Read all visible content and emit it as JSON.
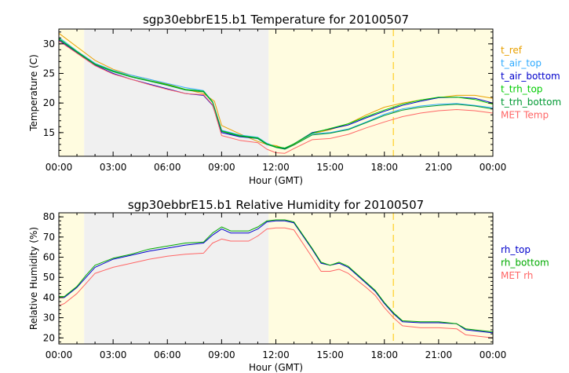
{
  "chart_data": [
    {
      "type": "line",
      "title": "sgp30ebbrE15.b1 Temperature for 20100507",
      "xlabel": "Hour (GMT)",
      "ylabel": "Temperature (C)",
      "xlim": [
        0,
        24
      ],
      "ylim": [
        11,
        32.5
      ],
      "xticks": [
        0,
        3,
        6,
        9,
        12,
        15,
        18,
        21,
        24
      ],
      "xtick_labels": [
        "00:00",
        "03:00",
        "06:00",
        "09:00",
        "12:00",
        "15:00",
        "18:00",
        "21:00",
        "00:00"
      ],
      "yticks": [
        15,
        20,
        25,
        30
      ],
      "ytick_labels": [
        "15",
        "20",
        "25",
        "30"
      ],
      "shading": [
        {
          "from": 0,
          "to": 1.4,
          "color": "#fffce0"
        },
        {
          "from": 1.4,
          "to": 11.6,
          "color": "#f0f0f0"
        },
        {
          "from": 11.6,
          "to": 24,
          "color": "#fffce0"
        }
      ],
      "marker_line": {
        "x": 18.5,
        "color": "#ffd84a"
      },
      "series": [
        {
          "name": "t_ref",
          "color": "#e8a000",
          "x": [
            0,
            1,
            2,
            3,
            4,
            5,
            6,
            7,
            8,
            8.6,
            9,
            10,
            11,
            11.5,
            12,
            12.5,
            13,
            14,
            15,
            16,
            17,
            18,
            19,
            20,
            21,
            22,
            23,
            24
          ],
          "y": [
            31.8,
            29.5,
            27.2,
            25.7,
            24.7,
            24.0,
            23.2,
            22.3,
            21.6,
            20.3,
            16.2,
            14.8,
            13.5,
            13.0,
            12.8,
            12.3,
            13.0,
            14.8,
            15.5,
            16.5,
            18.0,
            19.3,
            20.0,
            20.5,
            20.9,
            21.3,
            21.3,
            20.8
          ]
        },
        {
          "name": "t_air_top",
          "color": "#2eaaff",
          "x": [
            0,
            1,
            2,
            3,
            4,
            5,
            6,
            7,
            8,
            8.5,
            9,
            10,
            11,
            11.5,
            12,
            12.5,
            13,
            14,
            15,
            16,
            17,
            18,
            19,
            20,
            21,
            22,
            23,
            24
          ],
          "y": [
            31.1,
            28.8,
            26.7,
            25.5,
            24.7,
            24.0,
            23.3,
            22.6,
            22.1,
            20.2,
            15.4,
            14.6,
            14.2,
            13.2,
            12.6,
            12.4,
            13.1,
            14.8,
            15.0,
            15.6,
            16.8,
            18.1,
            19.0,
            19.5,
            19.8,
            19.9,
            19.6,
            19.2
          ]
        },
        {
          "name": "t_air_bottom",
          "color": "#0000cc",
          "x": [
            0,
            1,
            2,
            3,
            4,
            5,
            6,
            7,
            8,
            8.5,
            9,
            10,
            11,
            11.5,
            12,
            12.5,
            13,
            14,
            15,
            16,
            17,
            18,
            19,
            20,
            21,
            22,
            23,
            24
          ],
          "y": [
            30.6,
            28.5,
            26.4,
            25.0,
            24.0,
            23.2,
            22.4,
            21.6,
            21.3,
            19.6,
            15.0,
            14.3,
            14.0,
            13.0,
            12.6,
            12.3,
            13.1,
            15.0,
            15.6,
            16.3,
            17.5,
            18.6,
            19.6,
            20.3,
            20.9,
            21.0,
            20.8,
            20.0
          ]
        },
        {
          "name": "t_trh_top",
          "color": "#00cc00",
          "x": [
            0,
            1,
            2,
            3,
            4,
            5,
            6,
            7,
            8,
            8.5,
            9,
            10,
            11,
            11.5,
            12,
            12.5,
            13,
            14,
            15,
            16,
            17,
            18,
            19,
            20,
            21,
            22,
            23,
            24
          ],
          "y": [
            30.9,
            28.7,
            26.6,
            25.4,
            24.5,
            23.8,
            23.1,
            22.3,
            22.0,
            20.2,
            15.3,
            14.5,
            14.1,
            13.1,
            12.6,
            12.4,
            13.1,
            14.9,
            15.7,
            16.5,
            17.7,
            18.8,
            19.8,
            20.5,
            21.0,
            21.0,
            20.6,
            19.8
          ]
        },
        {
          "name": "t_trh_bottom",
          "color": "#009933",
          "x": [
            0,
            1,
            2,
            3,
            4,
            5,
            6,
            7,
            8,
            8.5,
            9,
            10,
            11,
            11.5,
            12,
            12.5,
            13,
            14,
            15,
            16,
            17,
            18,
            19,
            20,
            21,
            22,
            23,
            24
          ],
          "y": [
            30.8,
            28.6,
            26.5,
            25.3,
            24.4,
            23.7,
            23.0,
            22.2,
            21.9,
            20.1,
            15.2,
            14.4,
            14.0,
            13.0,
            12.5,
            12.2,
            12.9,
            14.6,
            14.9,
            15.5,
            16.7,
            17.9,
            18.8,
            19.3,
            19.6,
            19.8,
            19.5,
            19.0
          ]
        },
        {
          "name": "MET Temp",
          "color": "#ff6666",
          "x": [
            0,
            1,
            2,
            3,
            4,
            5,
            6,
            7,
            8,
            8.5,
            9,
            10,
            11,
            11.5,
            12,
            12.5,
            13,
            14,
            15,
            16,
            17,
            18,
            19,
            20,
            21,
            22,
            23,
            24
          ],
          "y": [
            30.5,
            28.4,
            26.3,
            24.9,
            24.0,
            23.1,
            22.3,
            21.6,
            21.4,
            19.7,
            14.5,
            13.7,
            13.3,
            12.2,
            11.6,
            11.5,
            12.3,
            13.8,
            14.0,
            14.7,
            15.8,
            16.8,
            17.7,
            18.3,
            18.7,
            18.9,
            18.7,
            18.3
          ]
        }
      ]
    },
    {
      "type": "line",
      "title": "sgp30ebbrE15.b1 Relative Humidity for 20100507",
      "xlabel": "Hour (GMT)",
      "ylabel": "Relative Humidity (%)",
      "xlim": [
        0,
        24
      ],
      "ylim": [
        17,
        82
      ],
      "xticks": [
        0,
        3,
        6,
        9,
        12,
        15,
        18,
        21,
        24
      ],
      "xtick_labels": [
        "00:00",
        "03:00",
        "06:00",
        "09:00",
        "12:00",
        "15:00",
        "18:00",
        "21:00",
        "00:00"
      ],
      "yticks": [
        20,
        30,
        40,
        50,
        60,
        70,
        80
      ],
      "ytick_labels": [
        "20",
        "30",
        "40",
        "50",
        "60",
        "70",
        "80"
      ],
      "shading": [
        {
          "from": 0,
          "to": 1.4,
          "color": "#fffce0"
        },
        {
          "from": 1.4,
          "to": 11.6,
          "color": "#f0f0f0"
        },
        {
          "from": 11.6,
          "to": 24,
          "color": "#fffce0"
        }
      ],
      "marker_line": {
        "x": 18.5,
        "color": "#ffd84a"
      },
      "series": [
        {
          "name": "rh_top",
          "color": "#0000cc",
          "x": [
            0,
            0.3,
            1,
            1.5,
            2,
            3,
            4,
            5,
            6,
            7,
            8,
            8.5,
            9,
            9.5,
            10,
            10.5,
            11,
            11.5,
            12,
            12.5,
            13,
            14,
            14.5,
            15,
            15.5,
            16,
            17,
            17.5,
            18,
            18.5,
            19,
            20,
            21,
            22,
            22.5,
            24
          ],
          "y": [
            40,
            40,
            45,
            50,
            55,
            59,
            61,
            63,
            64.5,
            66,
            67,
            71,
            74,
            72,
            72,
            72,
            74,
            77.5,
            78,
            78,
            77,
            64,
            57,
            56,
            57,
            55,
            47,
            43,
            37,
            32,
            28,
            27.5,
            27.5,
            27,
            24,
            22.5
          ]
        },
        {
          "name": "rh_bottom",
          "color": "#00aa00",
          "x": [
            0,
            0.3,
            1,
            1.5,
            2,
            3,
            4,
            5,
            6,
            7,
            8,
            8.5,
            9,
            9.5,
            10,
            10.5,
            11,
            11.5,
            12,
            12.5,
            13,
            14,
            14.5,
            15,
            15.5,
            16,
            17,
            17.5,
            18,
            18.5,
            19,
            20,
            21,
            22,
            22.5,
            24
          ],
          "y": [
            40.5,
            40.5,
            45.5,
            51,
            56,
            59.5,
            61.5,
            64,
            65.5,
            67,
            67.5,
            72,
            75,
            73,
            73,
            73,
            75,
            78,
            78.5,
            78.5,
            77.5,
            64.5,
            57.5,
            56,
            57.5,
            55.5,
            47.5,
            43.5,
            37.5,
            32.5,
            28.5,
            28,
            28,
            27,
            24.5,
            23
          ]
        },
        {
          "name": "MET rh",
          "color": "#ff6666",
          "x": [
            0,
            0.3,
            1,
            1.5,
            2,
            3,
            4,
            5,
            6,
            7,
            8,
            8.5,
            9,
            9.5,
            10,
            10.5,
            11,
            11.5,
            12,
            12.5,
            13,
            14,
            14.5,
            15,
            15.5,
            16,
            17,
            17.5,
            18,
            18.5,
            19,
            20,
            21,
            22,
            22.5,
            24
          ],
          "y": [
            36,
            37,
            42,
            47,
            52,
            55,
            57,
            59,
            60.5,
            61.5,
            62,
            67,
            69,
            68,
            68,
            68,
            70.5,
            74,
            74.5,
            74.5,
            73.5,
            60,
            53,
            53,
            54,
            52,
            45,
            41,
            35,
            30,
            26,
            25,
            25,
            24.5,
            21.5,
            20
          ]
        }
      ]
    }
  ]
}
